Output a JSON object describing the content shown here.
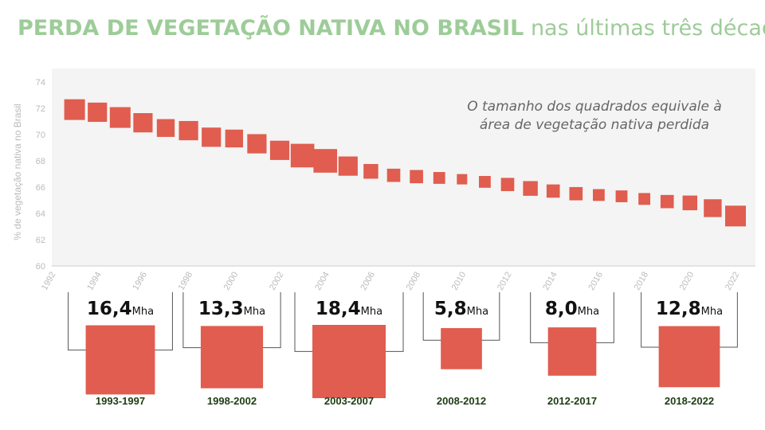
{
  "title": {
    "main": "PERDA DE VEGETAÇÃO NATIVA NO BRASIL",
    "sub": "nas últimas três décadas"
  },
  "colors": {
    "title": "#9dcc98",
    "square": "#e05d4f",
    "plot_bg": "#f4f4f4",
    "period_label": "#1e3d13",
    "axis_text": "#bbbbbb"
  },
  "chart_data": {
    "type": "scatter",
    "ylabel": "% de vegetação nativa no Brasil",
    "xlim": [
      1992,
      2022
    ],
    "ylim": [
      60,
      74
    ],
    "xticks": [
      "1992",
      "1994",
      "1996",
      "1998",
      "2000",
      "2002",
      "2004",
      "2006",
      "2008",
      "2010",
      "2012",
      "2014",
      "2016",
      "2018",
      "2020",
      "2022"
    ],
    "yticks": [
      "60",
      "62",
      "64",
      "66",
      "68",
      "70",
      "72",
      "74"
    ],
    "annotation": "O tamanho dos quadrados equivale à área de vegetação nativa perdida",
    "points": [
      {
        "x": 1993,
        "y": 71.9,
        "size": 1.0
      },
      {
        "x": 1994,
        "y": 71.7,
        "size": 0.93
      },
      {
        "x": 1995,
        "y": 71.3,
        "size": 1.0
      },
      {
        "x": 1996,
        "y": 70.9,
        "size": 0.93
      },
      {
        "x": 1997,
        "y": 70.5,
        "size": 0.86
      },
      {
        "x": 1998,
        "y": 70.3,
        "size": 0.93
      },
      {
        "x": 1999,
        "y": 69.8,
        "size": 0.93
      },
      {
        "x": 2000,
        "y": 69.7,
        "size": 0.86
      },
      {
        "x": 2001,
        "y": 69.3,
        "size": 0.93
      },
      {
        "x": 2002,
        "y": 68.8,
        "size": 0.93
      },
      {
        "x": 2003,
        "y": 68.4,
        "size": 1.14
      },
      {
        "x": 2004,
        "y": 68.0,
        "size": 1.14
      },
      {
        "x": 2005,
        "y": 67.6,
        "size": 0.93
      },
      {
        "x": 2006,
        "y": 67.2,
        "size": 0.71
      },
      {
        "x": 2007,
        "y": 66.9,
        "size": 0.64
      },
      {
        "x": 2008,
        "y": 66.8,
        "size": 0.64
      },
      {
        "x": 2009,
        "y": 66.7,
        "size": 0.57
      },
      {
        "x": 2010,
        "y": 66.6,
        "size": 0.5
      },
      {
        "x": 2011,
        "y": 66.4,
        "size": 0.57
      },
      {
        "x": 2012,
        "y": 66.2,
        "size": 0.64
      },
      {
        "x": 2013,
        "y": 65.9,
        "size": 0.71
      },
      {
        "x": 2014,
        "y": 65.7,
        "size": 0.64
      },
      {
        "x": 2015,
        "y": 65.5,
        "size": 0.64
      },
      {
        "x": 2016,
        "y": 65.4,
        "size": 0.57
      },
      {
        "x": 2017,
        "y": 65.3,
        "size": 0.57
      },
      {
        "x": 2018,
        "y": 65.1,
        "size": 0.57
      },
      {
        "x": 2019,
        "y": 64.9,
        "size": 0.64
      },
      {
        "x": 2020,
        "y": 64.8,
        "size": 0.71
      },
      {
        "x": 2021,
        "y": 64.4,
        "size": 0.86
      },
      {
        "x": 2022,
        "y": 63.8,
        "size": 1.0
      }
    ],
    "periods": [
      {
        "label": "1993-1997",
        "value": "16,4",
        "unit": "Mha",
        "area": 16.4
      },
      {
        "label": "1998-2002",
        "value": "13,3",
        "unit": "Mha",
        "area": 13.3
      },
      {
        "label": "2003-2007",
        "value": "18,4",
        "unit": "Mha",
        "area": 18.4
      },
      {
        "label": "2008-2012",
        "value": "5,8",
        "unit": "Mha",
        "area": 5.8
      },
      {
        "label": "2012-2017",
        "value": "8,0",
        "unit": "Mha",
        "area": 8.0
      },
      {
        "label": "2018-2022",
        "value": "12,8",
        "unit": "Mha",
        "area": 12.8
      }
    ]
  }
}
